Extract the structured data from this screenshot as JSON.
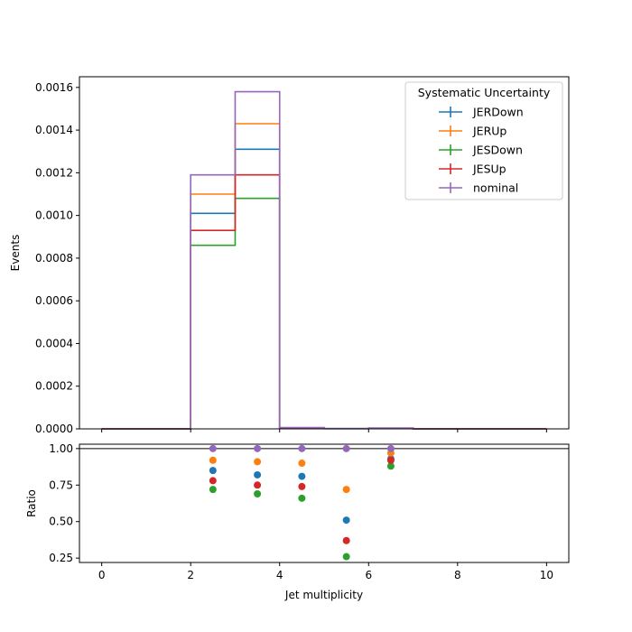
{
  "chart_data": {
    "type": "step-histogram-with-ratio",
    "legend": {
      "title": "Systematic Uncertainty",
      "placement": "upper right"
    },
    "bin_edges": [
      0,
      1,
      2,
      3,
      4,
      5,
      6,
      7,
      8,
      9,
      10
    ],
    "main": {
      "ylabel": "Events",
      "ylim": [
        0,
        0.00165
      ],
      "yticks": [
        "0.0000",
        "0.0002",
        "0.0004",
        "0.0006",
        "0.0008",
        "0.0010",
        "0.0012",
        "0.0014",
        "0.0016"
      ],
      "series": [
        {
          "name": "JERDown",
          "color": "#1f77b4",
          "values": [
            0,
            0,
            0.00101,
            0.00131,
            5e-06,
            1e-06,
            3e-06,
            0,
            0,
            0
          ]
        },
        {
          "name": "JERUp",
          "color": "#ff7f0e",
          "values": [
            0,
            0,
            0.0011,
            0.00143,
            5e-06,
            1e-06,
            3e-06,
            0,
            0,
            0
          ]
        },
        {
          "name": "JESDown",
          "color": "#2ca02c",
          "values": [
            0,
            0,
            0.00086,
            0.00108,
            4e-06,
            5e-07,
            3e-06,
            0,
            0,
            0
          ]
        },
        {
          "name": "JESUp",
          "color": "#d62728",
          "values": [
            0,
            0,
            0.00093,
            0.00119,
            5e-06,
            1e-06,
            3e-06,
            0,
            0,
            0
          ]
        },
        {
          "name": "nominal",
          "color": "#9467bd",
          "values": [
            0,
            0,
            0.00119,
            0.00158,
            6e-06,
            2e-06,
            4e-06,
            0,
            0,
            0
          ]
        }
      ]
    },
    "ratio": {
      "ylabel": "Ratio",
      "xlabel": "Jet multiplicity",
      "ylim": [
        0.22,
        1.03
      ],
      "yticks": [
        "0.25",
        "0.50",
        "0.75",
        "1.00"
      ],
      "reference_line": 1.0,
      "x": [
        2.5,
        3.5,
        4.5,
        5.5,
        6.5
      ],
      "series": [
        {
          "name": "JERDown",
          "color": "#1f77b4",
          "values": [
            0.85,
            0.82,
            0.81,
            0.51,
            0.93
          ]
        },
        {
          "name": "JERUp",
          "color": "#ff7f0e",
          "values": [
            0.92,
            0.91,
            0.9,
            0.72,
            0.97
          ]
        },
        {
          "name": "JESDown",
          "color": "#2ca02c",
          "values": [
            0.72,
            0.69,
            0.66,
            0.26,
            0.88
          ]
        },
        {
          "name": "JESUp",
          "color": "#d62728",
          "values": [
            0.78,
            0.75,
            0.74,
            0.37,
            0.92
          ]
        },
        {
          "name": "nominal",
          "color": "#9467bd",
          "values": [
            1.0,
            1.0,
            1.0,
            1.0,
            1.0
          ]
        }
      ]
    },
    "xlim": [
      -0.5,
      10.5
    ],
    "xticks": [
      "0",
      "2",
      "4",
      "6",
      "8",
      "10"
    ]
  }
}
